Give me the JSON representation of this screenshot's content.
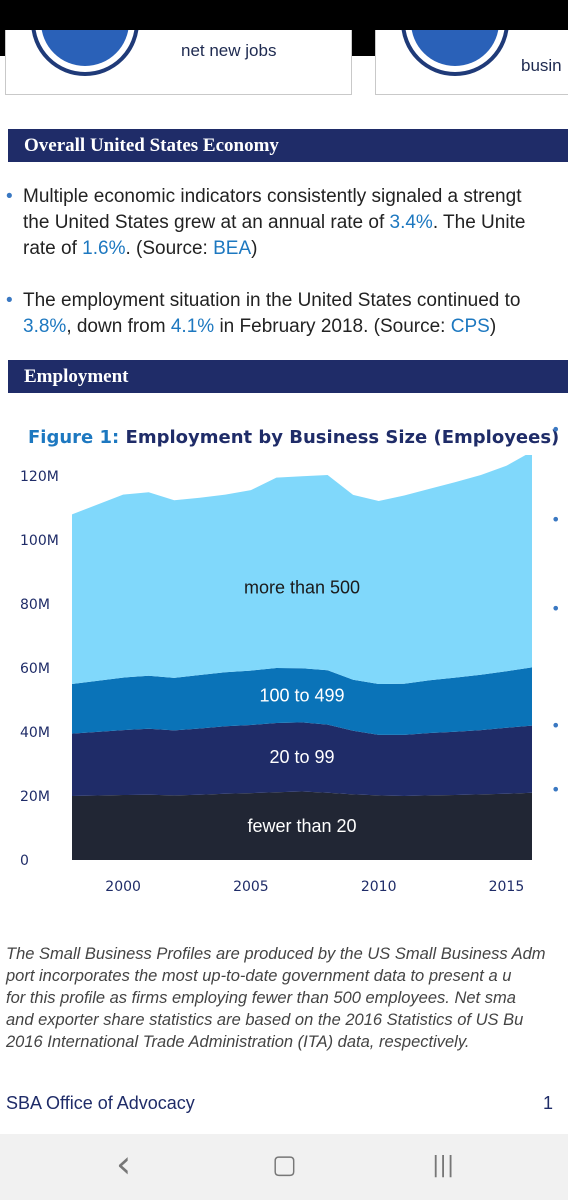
{
  "top_cards": {
    "left_text": "net new jobs",
    "right_text": "busin"
  },
  "section1": {
    "title": "Overall United States Economy",
    "bullet1": {
      "line1": "Multiple economic indicators consistently signaled a strengt",
      "line2_a": "the United States grew at an annual rate of ",
      "line2_link": "3.4%",
      "line2_b": ".  The Unite",
      "line3_a": "rate of ",
      "line3_link1": "1.6%",
      "line3_b": ". (Source: ",
      "line3_link2": "BEA",
      "line3_c": ")"
    },
    "bullet2": {
      "line1": "The employment situation in the United States continued to",
      "line2_link1": "3.8%",
      "line2_a": ", down from ",
      "line2_link2": "4.1%",
      "line2_b": " in February 2018. (Source: ",
      "line2_link3": "CPS",
      "line2_c": ")"
    }
  },
  "section2": {
    "title": "Employment"
  },
  "figure": {
    "number": "Figure 1:",
    "title": "Employment by Business Size (Employees)"
  },
  "chart_data": {
    "type": "area",
    "stacked": true,
    "x": [
      1998,
      2000,
      2001,
      2002,
      2003,
      2004,
      2005,
      2006,
      2007,
      2008,
      2009,
      2010,
      2011,
      2012,
      2013,
      2014,
      2015,
      2016
    ],
    "series": [
      {
        "name": "fewer than 20",
        "color": "#212634",
        "values": [
          20.0,
          20.3,
          20.4,
          20.2,
          20.4,
          20.7,
          20.9,
          21.2,
          21.4,
          21.0,
          20.5,
          20.2,
          20.0,
          20.2,
          20.3,
          20.5,
          20.7,
          21.0
        ]
      },
      {
        "name": "20 to 99",
        "color": "#1f2c68",
        "values": [
          19.5,
          20.3,
          20.6,
          20.3,
          20.7,
          21.1,
          21.3,
          21.6,
          21.6,
          21.3,
          19.9,
          18.9,
          19.1,
          19.5,
          19.8,
          20.1,
          20.6,
          21.0
        ]
      },
      {
        "name": "100 to 499",
        "color": "#0a73b8",
        "values": [
          15.5,
          16.4,
          16.6,
          16.4,
          16.7,
          16.9,
          17.0,
          17.2,
          16.9,
          17.0,
          15.9,
          15.9,
          16.0,
          16.5,
          16.9,
          17.3,
          17.7,
          18.2
        ]
      },
      {
        "name": "more than 500",
        "color": "#80d8fb",
        "values": [
          53.0,
          57.2,
          57.3,
          55.5,
          55.4,
          55.5,
          56.4,
          59.5,
          60.0,
          61.0,
          57.8,
          57.2,
          58.8,
          59.8,
          61.1,
          62.4,
          64.2,
          67.5
        ]
      }
    ],
    "y_ticks": [
      "0",
      "20M",
      "40M",
      "60M",
      "80M",
      "100M",
      "120M"
    ],
    "x_ticks": [
      "2000",
      "2005",
      "2010",
      "2015"
    ],
    "ylim": [
      0,
      125
    ],
    "xlim": [
      1998,
      2016
    ],
    "grid": false,
    "legend": "inline labels"
  },
  "disclaimer": {
    "line1": "The Small Business Profiles are produced by the US Small Business Adm",
    "line2": "port incorporates the most up-to-date government data to present a u",
    "line3": "for this profile as firms employing fewer than 500 employees.  Net sma",
    "line4": "and exporter share statistics are based on the 2016 Statistics of US Bu",
    "line5": "2016 International Trade Administration (ITA) data, respectively."
  },
  "footer": {
    "left": "SBA Office of Advocacy",
    "page": "1"
  },
  "navbar": {
    "back_glyph": "‹",
    "home_glyph": "▢",
    "recents_glyph": "|||"
  },
  "icons": [
    "people-circle-icon",
    "business-circle-icon",
    "back-icon",
    "home-icon",
    "recents-icon"
  ]
}
